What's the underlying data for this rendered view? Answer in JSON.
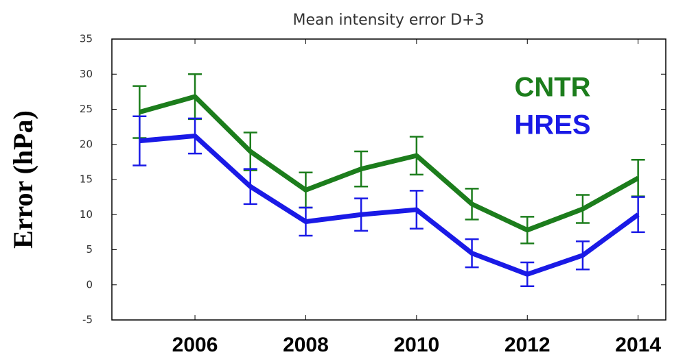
{
  "chart_data": {
    "type": "line",
    "title": "Mean intensity error D+3",
    "y_label": "Error (hPa)",
    "x": [
      2005,
      2006,
      2007,
      2008,
      2009,
      2010,
      2011,
      2012,
      2013,
      2014
    ],
    "xlim": [
      2004.5,
      2014.5
    ],
    "xticks": [
      2006,
      2008,
      2010,
      2012,
      2014
    ],
    "ylim": [
      -5,
      35
    ],
    "yticks": [
      -5,
      0,
      5,
      10,
      15,
      20,
      25,
      30,
      35
    ],
    "series": [
      {
        "name": "CNTR",
        "color": "#1c7d1c",
        "values": [
          24.6,
          26.8,
          19,
          13.5,
          16.5,
          18.4,
          11.5,
          7.8,
          10.8,
          15.2
        ],
        "errors": [
          3.7,
          3.2,
          2.7,
          2.5,
          2.5,
          2.7,
          2.2,
          1.9,
          2,
          2.6
        ]
      },
      {
        "name": "HRES",
        "color": "#1a1ae6",
        "values": [
          20.5,
          21.2,
          14,
          9,
          10,
          10.7,
          4.5,
          1.5,
          4.2,
          10
        ],
        "errors": [
          3.5,
          2.5,
          2.5,
          2,
          2.3,
          2.7,
          2,
          1.7,
          2,
          2.5
        ]
      }
    ]
  }
}
